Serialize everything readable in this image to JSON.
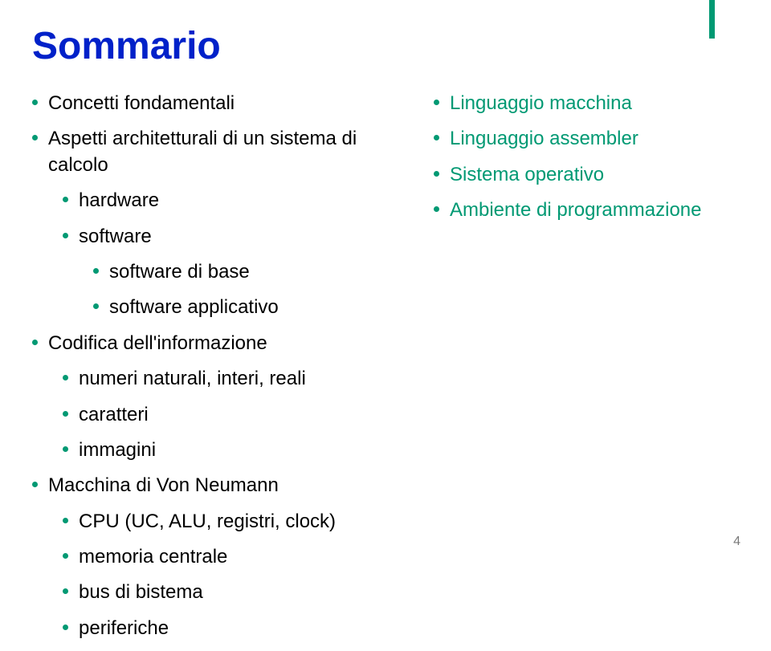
{
  "title": "Sommario",
  "left_column": [
    {
      "text": "Concetti fondamentali",
      "indent": 0,
      "color": "black"
    },
    {
      "text": "Aspetti architetturali di un sistema di calcolo",
      "indent": 0,
      "color": "black"
    },
    {
      "text": "hardware",
      "indent": 1,
      "color": "black"
    },
    {
      "text": "software",
      "indent": 1,
      "color": "black"
    },
    {
      "text": "software di base",
      "indent": 2,
      "color": "black"
    },
    {
      "text": "software applicativo",
      "indent": 2,
      "color": "black"
    },
    {
      "text": "Codifica dell'informazione",
      "indent": 0,
      "color": "black"
    },
    {
      "text": "numeri naturali, interi, reali",
      "indent": 1,
      "color": "black"
    },
    {
      "text": "caratteri",
      "indent": 1,
      "color": "black"
    },
    {
      "text": "immagini",
      "indent": 1,
      "color": "black"
    },
    {
      "text": "Macchina di Von Neumann",
      "indent": 0,
      "color": "black"
    },
    {
      "text": "CPU (UC, ALU, registri, clock)",
      "indent": 1,
      "color": "black"
    },
    {
      "text": "memoria centrale",
      "indent": 1,
      "color": "black"
    },
    {
      "text": "bus di bistema",
      "indent": 1,
      "color": "black"
    },
    {
      "text": "periferiche",
      "indent": 1,
      "color": "black"
    }
  ],
  "right_column": [
    {
      "text": "Linguaggio macchina",
      "indent": 0,
      "color": "teal"
    },
    {
      "text": "Linguaggio assembler",
      "indent": 0,
      "color": "teal"
    },
    {
      "text": "Sistema operativo",
      "indent": 0,
      "color": "teal"
    },
    {
      "text": "Ambiente di programmazione",
      "indent": 0,
      "color": "teal"
    }
  ],
  "page_number": "4",
  "colors": {
    "title": "#0021c9",
    "bullet": "#009973",
    "text_black": "#000000",
    "text_teal": "#009973",
    "background": "#ffffff",
    "page_num": "#7a7a7a"
  },
  "fontsize": {
    "title": 48,
    "body": 24,
    "page_num": 16
  }
}
